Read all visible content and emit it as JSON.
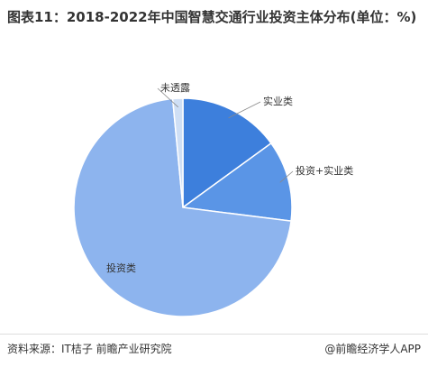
{
  "chart_data": {
    "type": "pie",
    "title": "图表11：2018-2022年中国智慧交通行业投资主体分布(单位：%)",
    "categories": [
      "实业类",
      "投资+实业类",
      "投资类",
      "未透露"
    ],
    "values": [
      15,
      12,
      71.5,
      1.5
    ],
    "colors": [
      "#3d7fdc",
      "#5a95e6",
      "#8db4ee",
      "#cfdff5"
    ],
    "source": "资料来源：IT桔子 前瞻产业研究院",
    "brand": "@前瞻经济学人APP"
  }
}
